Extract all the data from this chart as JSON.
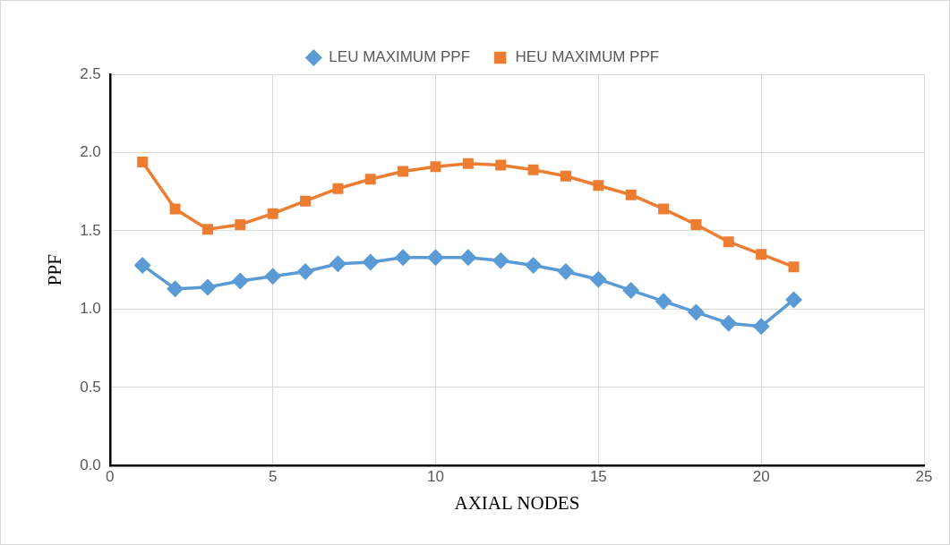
{
  "chart_data": {
    "type": "line",
    "xlabel": "AXIAL NODES",
    "ylabel": "PPF",
    "x": [
      1,
      2,
      3,
      4,
      5,
      6,
      7,
      8,
      9,
      10,
      11,
      12,
      13,
      14,
      15,
      16,
      17,
      18,
      19,
      20,
      21
    ],
    "series": [
      {
        "name": "LEU MAXIMUM PPF",
        "color": "#5b9bd5",
        "marker": "diamond",
        "values": [
          1.28,
          1.13,
          1.14,
          1.18,
          1.21,
          1.24,
          1.29,
          1.3,
          1.33,
          1.33,
          1.33,
          1.31,
          1.28,
          1.24,
          1.19,
          1.12,
          1.05,
          0.98,
          0.91,
          0.89,
          1.06
        ]
      },
      {
        "name": "HEU MAXIMUM PPF",
        "color": "#ed7d31",
        "marker": "square",
        "values": [
          1.94,
          1.64,
          1.51,
          1.54,
          1.61,
          1.69,
          1.77,
          1.83,
          1.88,
          1.91,
          1.93,
          1.92,
          1.89,
          1.85,
          1.79,
          1.73,
          1.64,
          1.54,
          1.43,
          1.35,
          1.27
        ]
      }
    ],
    "xlim": [
      0,
      25
    ],
    "xticks": [
      0,
      5,
      10,
      15,
      20,
      25
    ],
    "ylim": [
      0,
      2.5
    ],
    "yticks": [
      {
        "value": 0,
        "label": "0.0"
      },
      {
        "value": 0.5,
        "label": "0.5"
      },
      {
        "value": 1,
        "label": "1.0"
      },
      {
        "value": 1.5,
        "label": "1.5"
      },
      {
        "value": 2,
        "label": "2.0"
      },
      {
        "value": 2.5,
        "label": "2.5"
      }
    ],
    "grid": true,
    "legend": "top",
    "line_style": "solid"
  }
}
